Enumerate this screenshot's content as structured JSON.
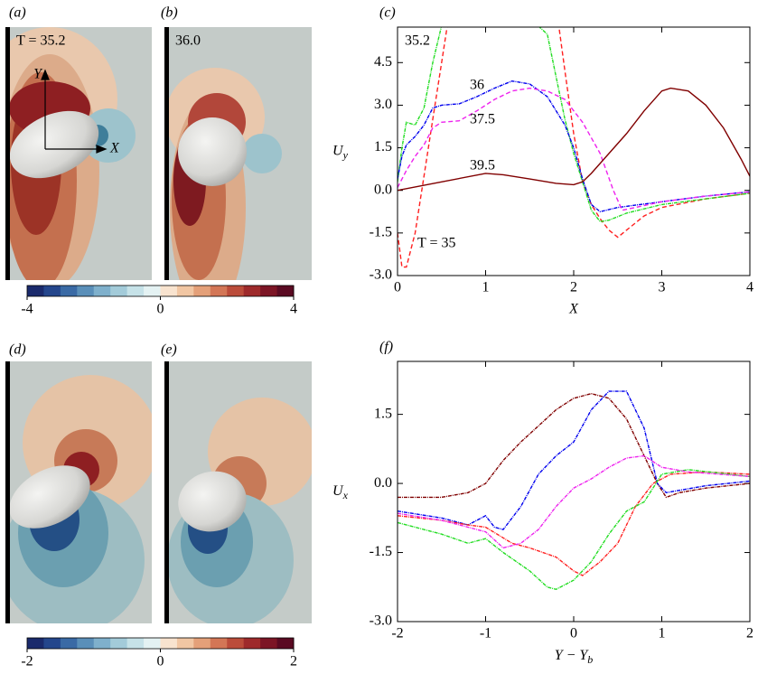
{
  "panels": {
    "a": {
      "label": "(a)",
      "time": "T = 35.2",
      "axis_x": "X",
      "axis_y": "Y"
    },
    "b": {
      "label": "(b)",
      "time": "36.0"
    },
    "d": {
      "label": "(d)"
    },
    "e": {
      "label": "(e)"
    },
    "colorbar_top": {
      "range": [
        -4,
        4
      ],
      "ticks": [
        -4,
        0,
        4
      ]
    },
    "colorbar_bottom": {
      "range": [
        -2,
        2
      ],
      "ticks": [
        -2,
        0,
        2
      ]
    }
  },
  "chart_data": [
    {
      "type": "line",
      "panel_label": "(c)",
      "xlabel": "X",
      "ylabel": {
        "main": "U",
        "sub": "y"
      },
      "xlim": [
        0,
        4
      ],
      "xticks": [
        0,
        1,
        2,
        3,
        4
      ],
      "ylim": [
        -3,
        5.75
      ],
      "yticks": [
        {
          "value": -3,
          "label": "-3.0"
        },
        {
          "value": -1.5,
          "label": "-1.5"
        },
        {
          "value": 0,
          "label": "0.0"
        },
        {
          "value": 1.5,
          "label": "1.5"
        },
        {
          "value": 3,
          "label": "3.0"
        },
        {
          "value": 4.5,
          "label": "4.5"
        }
      ],
      "series": [
        {
          "name": "T = 35",
          "color": "#ff2020",
          "style": "dashed",
          "x": [
            0,
            0.05,
            0.1,
            0.2,
            0.3,
            0.4,
            0.5,
            0.6,
            1.8,
            1.9,
            2.0,
            2.1,
            2.2,
            2.3,
            2.4,
            2.5,
            2.6,
            2.8,
            3.0,
            3.5,
            4.0
          ],
          "values": [
            -1.5,
            -2.7,
            -2.7,
            -1.5,
            0.5,
            2.5,
            4.5,
            6.5,
            6.5,
            4.2,
            2.0,
            0.3,
            -0.5,
            -1.0,
            -1.4,
            -1.65,
            -1.4,
            -0.9,
            -0.6,
            -0.3,
            -0.1
          ]
        },
        {
          "name": "35.2",
          "color": "#22dd22",
          "style": "dashdot",
          "x": [
            0,
            0.05,
            0.1,
            0.2,
            0.3,
            0.4,
            0.5,
            1.0,
            1.7,
            1.8,
            1.9,
            2.0,
            2.1,
            2.2,
            2.3,
            2.4,
            2.6,
            3.0,
            3.5,
            4.0
          ],
          "values": [
            0.3,
            1.5,
            2.4,
            2.3,
            2.9,
            4.5,
            5.8,
            7.5,
            5.5,
            4.0,
            2.5,
            1.3,
            0.3,
            -0.7,
            -1.1,
            -1.05,
            -0.8,
            -0.5,
            -0.3,
            -0.1
          ]
        },
        {
          "name": "36",
          "color": "#0000ee",
          "style": "dashdot",
          "x": [
            0,
            0.05,
            0.1,
            0.2,
            0.3,
            0.4,
            0.5,
            0.7,
            0.9,
            1.1,
            1.3,
            1.5,
            1.7,
            1.9,
            2.0,
            2.1,
            2.2,
            2.3,
            2.5,
            3.0,
            3.5,
            4.0
          ],
          "values": [
            0.4,
            1.2,
            1.6,
            1.9,
            2.3,
            2.9,
            3.0,
            3.05,
            3.3,
            3.6,
            3.85,
            3.75,
            3.3,
            2.3,
            1.5,
            0.4,
            -0.5,
            -0.75,
            -0.6,
            -0.4,
            -0.2,
            -0.05
          ]
        },
        {
          "name": "37.5",
          "color": "#ee22ee",
          "style": "dashed",
          "x": [
            0,
            0.1,
            0.2,
            0.3,
            0.4,
            0.5,
            0.7,
            0.9,
            1.1,
            1.3,
            1.5,
            1.7,
            1.9,
            2.1,
            2.3,
            2.45,
            2.55,
            2.7,
            3.0,
            3.5,
            4.0
          ],
          "values": [
            0.1,
            0.7,
            1.2,
            1.6,
            2.2,
            2.4,
            2.45,
            2.8,
            3.2,
            3.5,
            3.6,
            3.5,
            3.2,
            2.4,
            1.3,
            0.0,
            -0.7,
            -0.6,
            -0.4,
            -0.2,
            -0.05
          ]
        },
        {
          "name": "39.5",
          "color": "#800000",
          "style": "solid",
          "x": [
            0,
            0.5,
            1.0,
            1.2,
            1.5,
            1.8,
            2.0,
            2.1,
            2.2,
            2.4,
            2.6,
            2.8,
            3.0,
            3.1,
            3.3,
            3.5,
            3.7,
            3.9,
            4.0
          ],
          "values": [
            0.0,
            0.3,
            0.6,
            0.55,
            0.4,
            0.25,
            0.2,
            0.3,
            0.6,
            1.3,
            2.0,
            2.8,
            3.5,
            3.6,
            3.5,
            3.0,
            2.2,
            1.1,
            0.5
          ]
        }
      ]
    },
    {
      "type": "line",
      "panel_label": "(f)",
      "xlabel": {
        "main": "Y − Y",
        "sub": "b"
      },
      "ylabel": {
        "main": "U",
        "sub": "x"
      },
      "xlim": [
        -2,
        2
      ],
      "xticks": [
        -2,
        -1,
        0,
        1,
        2
      ],
      "ylim": [
        -3,
        2.65
      ],
      "yticks": [
        {
          "value": -3,
          "label": "-3.0"
        },
        {
          "value": -1.5,
          "label": "-1.5"
        },
        {
          "value": 0,
          "label": "0.0"
        },
        {
          "value": 1.5,
          "label": "1.5"
        }
      ],
      "series": [
        {
          "color": "#800000",
          "style": "dashdot",
          "x": [
            -2,
            -1.5,
            -1.2,
            -1.0,
            -0.8,
            -0.6,
            -0.4,
            -0.2,
            0,
            0.2,
            0.4,
            0.6,
            0.8,
            0.95,
            1.05,
            1.2,
            1.5,
            2
          ],
          "values": [
            -0.3,
            -0.3,
            -0.2,
            0.0,
            0.5,
            0.9,
            1.25,
            1.6,
            1.85,
            1.95,
            1.85,
            1.4,
            0.6,
            0.0,
            -0.3,
            -0.2,
            -0.1,
            0.0
          ]
        },
        {
          "color": "#0000ee",
          "style": "dashdot",
          "x": [
            -2,
            -1.5,
            -1.2,
            -1.0,
            -0.9,
            -0.8,
            -0.6,
            -0.4,
            -0.2,
            0,
            0.2,
            0.4,
            0.6,
            0.8,
            0.95,
            1.05,
            1.2,
            1.5,
            2
          ],
          "values": [
            -0.6,
            -0.75,
            -0.9,
            -0.7,
            -0.95,
            -1.0,
            -0.5,
            0.2,
            0.6,
            0.9,
            1.6,
            2.0,
            2.0,
            1.2,
            0.0,
            -0.2,
            -0.15,
            -0.05,
            0.05
          ]
        },
        {
          "color": "#ff2020",
          "style": "dashdot",
          "x": [
            -2,
            -1.5,
            -1.2,
            -1.0,
            -0.7,
            -0.5,
            -0.2,
            0,
            0.1,
            0.3,
            0.5,
            0.7,
            0.9,
            1.1,
            1.5,
            2
          ],
          "values": [
            -0.7,
            -0.8,
            -0.9,
            -0.95,
            -1.3,
            -1.4,
            -1.6,
            -1.9,
            -2.0,
            -1.7,
            -1.3,
            -0.5,
            0.0,
            0.2,
            0.25,
            0.2
          ]
        },
        {
          "color": "#22dd22",
          "style": "dashdot",
          "x": [
            -2,
            -1.5,
            -1.2,
            -1.0,
            -0.8,
            -0.5,
            -0.3,
            -0.2,
            0,
            0.2,
            0.4,
            0.6,
            0.8,
            1.0,
            1.3,
            2
          ],
          "values": [
            -0.85,
            -1.1,
            -1.3,
            -1.2,
            -1.5,
            -1.9,
            -2.25,
            -2.3,
            -2.1,
            -1.7,
            -1.1,
            -0.6,
            -0.4,
            0.2,
            0.3,
            0.15
          ]
        },
        {
          "color": "#ee22ee",
          "style": "dashdot",
          "x": [
            -2,
            -1.5,
            -1.2,
            -1.0,
            -0.8,
            -0.6,
            -0.4,
            -0.2,
            0,
            0.2,
            0.4,
            0.6,
            0.8,
            1.0,
            1.3,
            2
          ],
          "values": [
            -0.65,
            -0.8,
            -0.95,
            -1.05,
            -1.4,
            -1.3,
            -1.0,
            -0.5,
            -0.1,
            0.1,
            0.35,
            0.55,
            0.6,
            0.35,
            0.25,
            0.15
          ]
        }
      ]
    }
  ]
}
